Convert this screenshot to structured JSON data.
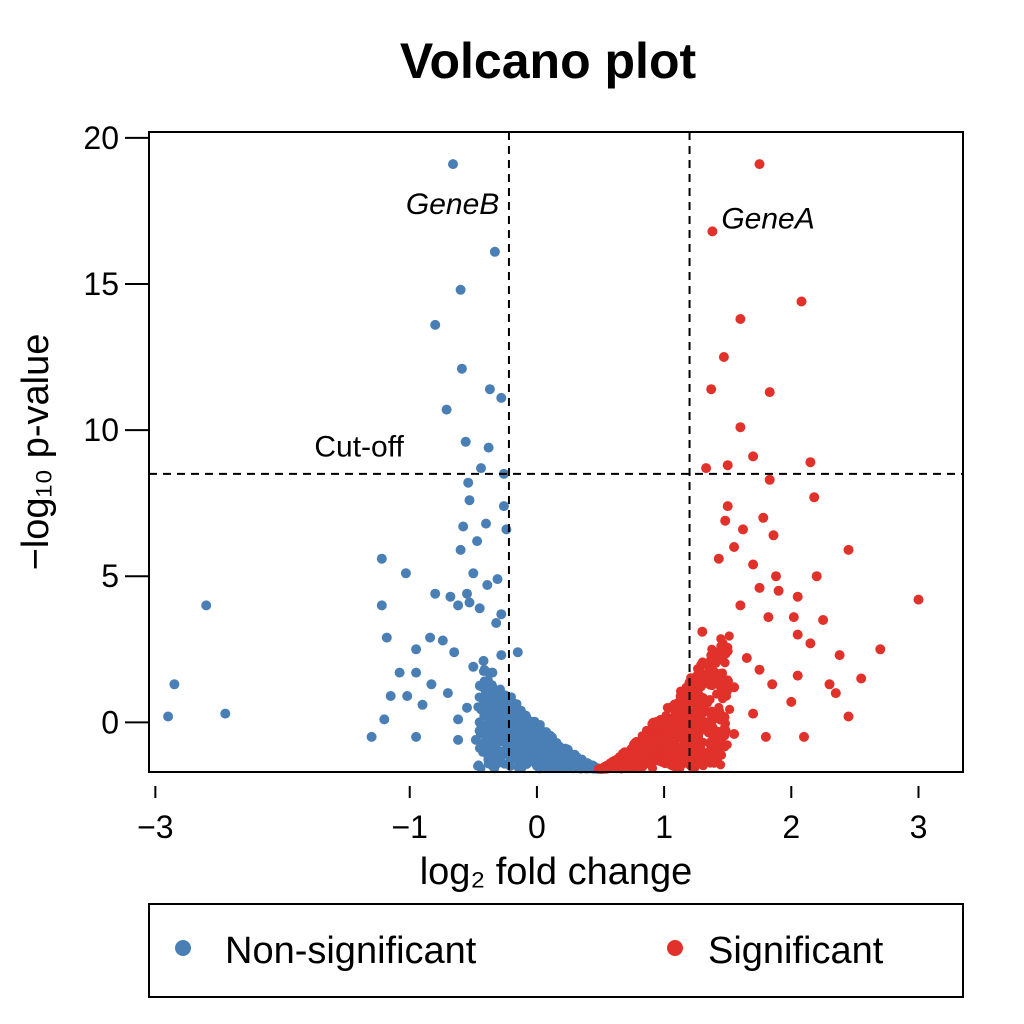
{
  "chart_data": {
    "type": "scatter",
    "title": "Volcano plot",
    "xlabel": "log₂ fold change",
    "ylabel": "−log₁₀ p-value",
    "xlim": [
      -3.05,
      3.35
    ],
    "ylim": [
      -1.7,
      20.2
    ],
    "x_ticks": [
      -3,
      -1,
      0,
      1,
      2,
      3
    ],
    "x_tick_labels": [
      "−3",
      "−1",
      "0",
      "1",
      "2",
      "3"
    ],
    "y_ticks": [
      0,
      5,
      10,
      15,
      20
    ],
    "y_tick_labels": [
      "0",
      "5",
      "10",
      "15",
      "20"
    ],
    "grid": false,
    "thresholds": {
      "x": [
        -0.22,
        1.2
      ],
      "y": 8.5
    },
    "annotations": [
      {
        "text": "Cut-off",
        "x": -1.75,
        "y": 9.1,
        "italic": false
      },
      {
        "text": "GeneB",
        "x": -1.03,
        "y": 17.4,
        "italic": true
      },
      {
        "text": "GeneA",
        "x": 1.45,
        "y": 16.9,
        "italic": true
      }
    ],
    "legend": {
      "position": "bottom",
      "entries": [
        "Non-significant",
        "Significant"
      ]
    },
    "colors": {
      "Non-significant": "#4a7fb5",
      "Significant": "#e0312a"
    },
    "series": [
      {
        "name": "Non-significant",
        "color": "#4a7fb5",
        "points": [
          [
            -0.66,
            19.1
          ],
          [
            -0.33,
            16.1
          ],
          [
            -0.6,
            14.8
          ],
          [
            -0.8,
            13.6
          ],
          [
            -0.59,
            12.1
          ],
          [
            -0.37,
            11.4
          ],
          [
            -0.28,
            11.1
          ],
          [
            -0.71,
            10.7
          ],
          [
            -0.56,
            9.6
          ],
          [
            -0.38,
            9.4
          ],
          [
            -0.44,
            8.7
          ],
          [
            -0.26,
            8.5
          ],
          [
            -0.54,
            8.2
          ],
          [
            -0.53,
            7.6
          ],
          [
            -0.26,
            7.4
          ],
          [
            -0.58,
            6.7
          ],
          [
            -0.4,
            6.8
          ],
          [
            -0.24,
            6.6
          ],
          [
            -0.47,
            6.2
          ],
          [
            -0.6,
            5.9
          ],
          [
            -1.22,
            5.6
          ],
          [
            -1.03,
            5.1
          ],
          [
            -0.5,
            5.1
          ],
          [
            -0.31,
            4.9
          ],
          [
            -0.39,
            4.7
          ],
          [
            -0.8,
            4.4
          ],
          [
            -0.68,
            4.3
          ],
          [
            -0.55,
            4.4
          ],
          [
            -0.53,
            4.1
          ],
          [
            -0.62,
            4.0
          ],
          [
            -0.45,
            3.9
          ],
          [
            -0.28,
            3.7
          ],
          [
            -0.32,
            3.4
          ],
          [
            -2.6,
            4.0
          ],
          [
            -1.22,
            4.0
          ],
          [
            -1.18,
            2.9
          ],
          [
            -0.84,
            2.9
          ],
          [
            -0.74,
            2.8
          ],
          [
            -0.95,
            2.5
          ],
          [
            -0.65,
            2.4
          ],
          [
            -1.08,
            1.7
          ],
          [
            -0.95,
            1.7
          ],
          [
            -0.83,
            1.3
          ],
          [
            -0.7,
            1.0
          ],
          [
            -1.15,
            0.9
          ],
          [
            -1.02,
            0.9
          ],
          [
            -0.9,
            0.6
          ],
          [
            -2.85,
            1.3
          ],
          [
            -2.9,
            0.2
          ],
          [
            -2.45,
            0.3
          ],
          [
            -1.2,
            0.1
          ],
          [
            -1.3,
            -0.5
          ],
          [
            -0.95,
            -0.5
          ],
          [
            -0.62,
            -0.6
          ],
          [
            -0.48,
            -0.6
          ],
          [
            -0.42,
            2.1
          ],
          [
            -0.35,
            1.7
          ],
          [
            -0.28,
            2.3
          ],
          [
            -0.5,
            1.9
          ],
          [
            -0.15,
            2.4
          ],
          [
            -0.38,
            0.8
          ],
          [
            -0.55,
            0.5
          ],
          [
            -0.45,
            0.0
          ],
          [
            -0.3,
            -0.3
          ],
          [
            -0.62,
            0.1
          ]
        ],
        "curve": {
          "x_start": -0.45,
          "x_end": 0.5,
          "y_top": 2.0,
          "y_bottom": -1.6,
          "count": 700
        }
      },
      {
        "name": "Significant",
        "color": "#e0312a",
        "points": [
          [
            1.75,
            19.1
          ],
          [
            1.38,
            16.8
          ],
          [
            2.08,
            14.4
          ],
          [
            1.6,
            13.8
          ],
          [
            1.47,
            12.5
          ],
          [
            1.37,
            11.4
          ],
          [
            1.83,
            11.3
          ],
          [
            1.6,
            10.1
          ],
          [
            1.7,
            9.1
          ],
          [
            1.33,
            8.7
          ],
          [
            1.5,
            8.8
          ],
          [
            2.15,
            8.9
          ],
          [
            1.83,
            8.3
          ],
          [
            2.18,
            7.7
          ],
          [
            1.5,
            7.4
          ],
          [
            1.48,
            6.9
          ],
          [
            1.78,
            7.0
          ],
          [
            1.62,
            6.6
          ],
          [
            1.86,
            6.4
          ],
          [
            2.45,
            5.9
          ],
          [
            1.55,
            6.0
          ],
          [
            1.43,
            5.6
          ],
          [
            1.7,
            5.4
          ],
          [
            1.88,
            5.0
          ],
          [
            2.2,
            5.0
          ],
          [
            1.75,
            4.6
          ],
          [
            1.9,
            4.5
          ],
          [
            2.05,
            4.3
          ],
          [
            1.6,
            4.0
          ],
          [
            1.82,
            3.6
          ],
          [
            2.02,
            3.6
          ],
          [
            2.25,
            3.5
          ],
          [
            3.0,
            4.2
          ],
          [
            2.05,
            3.0
          ],
          [
            2.15,
            2.7
          ],
          [
            2.38,
            2.3
          ],
          [
            2.7,
            2.5
          ],
          [
            2.05,
            1.6
          ],
          [
            1.75,
            1.8
          ],
          [
            1.85,
            1.3
          ],
          [
            2.3,
            1.3
          ],
          [
            2.55,
            1.5
          ],
          [
            2.35,
            1.0
          ],
          [
            2.0,
            0.7
          ],
          [
            2.45,
            0.2
          ],
          [
            2.1,
            -0.5
          ],
          [
            1.8,
            -0.5
          ],
          [
            1.55,
            -0.4
          ],
          [
            1.65,
            2.2
          ],
          [
            1.45,
            2.6
          ],
          [
            1.3,
            3.1
          ],
          [
            1.42,
            1.6
          ],
          [
            1.55,
            1.2
          ],
          [
            1.32,
            2.0
          ],
          [
            1.7,
            0.3
          ]
        ],
        "curve": {
          "x_start": 0.5,
          "x_end": 1.5,
          "y_top": 3.2,
          "y_bottom": -1.6,
          "count": 750
        }
      }
    ]
  }
}
